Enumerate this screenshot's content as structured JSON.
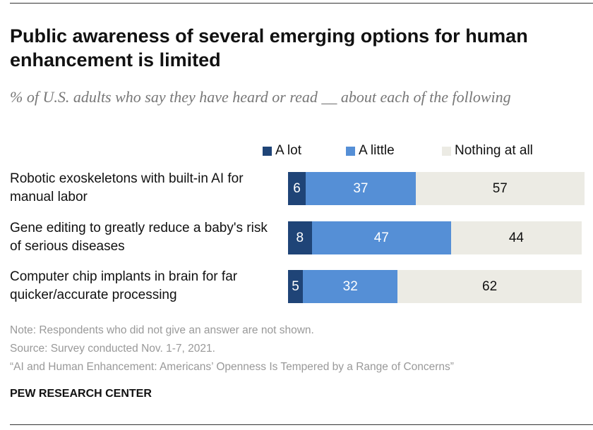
{
  "title": "Public awareness of several emerging options for human enhancement is limited",
  "subtitle": "% of U.S. adults who say they have heard or read __ about each of the following",
  "colors": {
    "a_lot": "#1f4477",
    "a_little": "#558fd6",
    "nothing": "#ecebe4"
  },
  "chart_data": {
    "type": "bar",
    "orientation": "horizontal-stacked",
    "categories": [
      "Robotic exoskeletons with built-in AI for manual labor",
      "Gene editing to greatly reduce a baby's risk of serious diseases",
      "Computer chip implants in brain for far quicker/accurate processing"
    ],
    "series": [
      {
        "name": "A lot",
        "values": [
          6,
          8,
          5
        ]
      },
      {
        "name": "A little",
        "values": [
          37,
          47,
          32
        ]
      },
      {
        "name": "Nothing at all",
        "values": [
          57,
          44,
          62
        ]
      }
    ],
    "legend_placement": "top",
    "xlim": [
      0,
      100
    ]
  },
  "notes": {
    "note": "Note: Respondents who did not give an answer are not shown.",
    "source": "Source: Survey conducted Nov. 1-7, 2021.",
    "report": "“AI and Human Enhancement: Americans’ Openness Is Tempered by a Range of Concerns”"
  },
  "logo": "PEW RESEARCH CENTER"
}
